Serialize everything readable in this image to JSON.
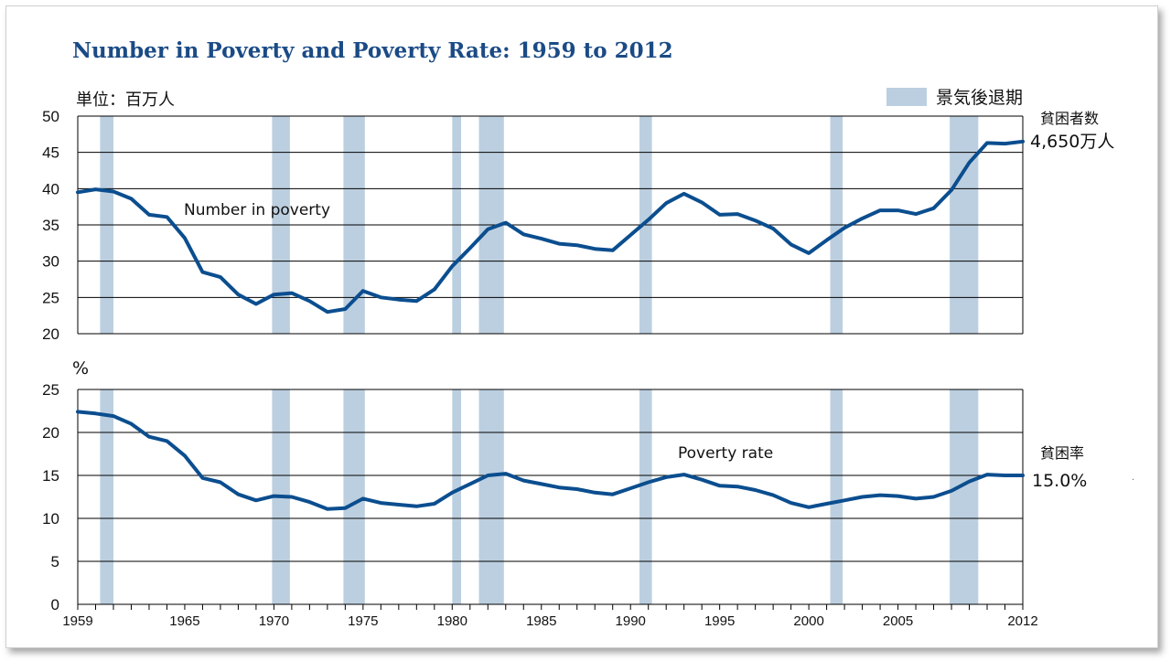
{
  "title": "Number in Poverty and Poverty Rate: 1959 to 2012",
  "legend": {
    "label": "景気後退期",
    "color": "#bccfe0"
  },
  "line_color": "#0b4e8f",
  "chart_data": [
    {
      "type": "line",
      "unit_label": "単位：百万人",
      "series": [
        {
          "name": "Number in poverty"
        }
      ],
      "series_label": "Number in poverty",
      "ylim": [
        20,
        50
      ],
      "yticks": [
        "20",
        "25",
        "30",
        "35",
        "40",
        "45",
        "50"
      ],
      "end_label_line1": "貧困者数",
      "end_label_line2": "4,650万人",
      "x": [
        1959,
        1960,
        1961,
        1962,
        1963,
        1964,
        1965,
        1966,
        1967,
        1968,
        1969,
        1970,
        1971,
        1972,
        1973,
        1974,
        1975,
        1976,
        1977,
        1978,
        1979,
        1980,
        1981,
        1982,
        1983,
        1984,
        1985,
        1986,
        1987,
        1988,
        1989,
        1990,
        1991,
        1992,
        1993,
        1994,
        1995,
        1996,
        1997,
        1998,
        1999,
        2000,
        2001,
        2002,
        2003,
        2004,
        2005,
        2006,
        2007,
        2008,
        2009,
        2010,
        2011,
        2012
      ],
      "values": [
        39.5,
        39.9,
        39.6,
        38.6,
        36.4,
        36.1,
        33.2,
        28.5,
        27.8,
        25.4,
        24.1,
        25.4,
        25.6,
        24.5,
        23.0,
        23.4,
        25.9,
        25.0,
        24.7,
        24.5,
        26.1,
        29.3,
        31.8,
        34.4,
        35.3,
        33.7,
        33.1,
        32.4,
        32.2,
        31.7,
        31.5,
        33.6,
        35.7,
        38.0,
        39.3,
        38.1,
        36.4,
        36.5,
        35.6,
        34.5,
        32.3,
        31.1,
        32.9,
        34.6,
        35.9,
        37.0,
        37.0,
        36.5,
        37.3,
        39.8,
        43.6,
        46.3,
        46.2,
        46.5
      ]
    },
    {
      "type": "line",
      "unit_label": "%",
      "series": [
        {
          "name": "Poverty rate"
        }
      ],
      "series_label": "Poverty rate",
      "ylim": [
        0,
        25
      ],
      "yticks": [
        "0",
        "5",
        "10",
        "15",
        "20",
        "25"
      ],
      "end_label_line1": "貧困率",
      "end_label_line2": "15.0%",
      "x": [
        1959,
        1960,
        1961,
        1962,
        1963,
        1964,
        1965,
        1966,
        1967,
        1968,
        1969,
        1970,
        1971,
        1972,
        1973,
        1974,
        1975,
        1976,
        1977,
        1978,
        1979,
        1980,
        1981,
        1982,
        1983,
        1984,
        1985,
        1986,
        1987,
        1988,
        1989,
        1990,
        1991,
        1992,
        1993,
        1994,
        1995,
        1996,
        1997,
        1998,
        1999,
        2000,
        2001,
        2002,
        2003,
        2004,
        2005,
        2006,
        2007,
        2008,
        2009,
        2010,
        2011,
        2012
      ],
      "values": [
        22.4,
        22.2,
        21.9,
        21.0,
        19.5,
        19.0,
        17.3,
        14.7,
        14.2,
        12.8,
        12.1,
        12.6,
        12.5,
        11.9,
        11.1,
        11.2,
        12.3,
        11.8,
        11.6,
        11.4,
        11.7,
        13.0,
        14.0,
        15.0,
        15.2,
        14.4,
        14.0,
        13.6,
        13.4,
        13.0,
        12.8,
        13.5,
        14.2,
        14.8,
        15.1,
        14.5,
        13.8,
        13.7,
        13.3,
        12.7,
        11.8,
        11.3,
        11.7,
        12.1,
        12.5,
        12.7,
        12.6,
        12.3,
        12.5,
        13.2,
        14.3,
        15.1,
        15.0,
        15.0
      ]
    }
  ],
  "x_axis": {
    "min": 1959,
    "max": 2012,
    "ticks": [
      "1959",
      "1965",
      "1970",
      "1975",
      "1980",
      "1985",
      "1990",
      "1995",
      "2000",
      "2005",
      "2012"
    ]
  },
  "recessions": [
    [
      1960.25,
      1961.0
    ],
    [
      1969.9,
      1970.9
    ],
    [
      1973.9,
      1975.1
    ],
    [
      1980.0,
      1980.5
    ],
    [
      1981.5,
      1982.9
    ],
    [
      1990.5,
      1991.2
    ],
    [
      2001.2,
      2001.9
    ],
    [
      2007.9,
      2009.5
    ]
  ],
  "note": "."
}
